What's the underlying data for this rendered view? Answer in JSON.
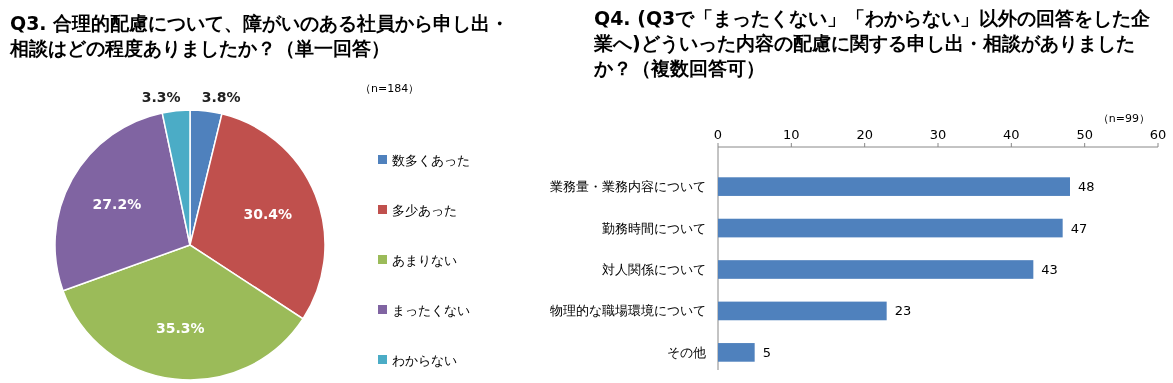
{
  "chart_data": [
    {
      "type": "pie",
      "title": "Q3. 合理的配慮について、障がいのある社員から申し出・相談はどの程度ありましたか？（単一回答）",
      "categories": [
        "数多くあった",
        "多少あった",
        "あまりない",
        "まったくない",
        "わからない"
      ],
      "values": [
        3.8,
        30.4,
        35.3,
        27.2,
        3.3
      ],
      "value_labels": [
        "3.8%",
        "30.4%",
        "35.3%",
        "27.2%",
        "3.3%"
      ],
      "colors": [
        "#4f81bd",
        "#c0504d",
        "#9bbb59",
        "#8064a2",
        "#4bacc6"
      ],
      "legend": "right",
      "annotations": [
        "（n=184）"
      ]
    },
    {
      "type": "bar",
      "orientation": "horizontal",
      "title": "Q4. (Q3で「まったくない」「わからない」以外の回答をした企業へ)どういった内容の配慮に関する申し出・相談がありましたか？（複数回答可）",
      "categories": [
        "業務量・業務内容について",
        "勤務時間について",
        "対人関係について",
        "物理的な職場環境について",
        "その他"
      ],
      "values": [
        48,
        47,
        43,
        23,
        5
      ],
      "color": "#4f81bd",
      "xlim": [
        0,
        60
      ],
      "xticks": [
        0,
        10,
        20,
        30,
        40,
        50,
        60
      ],
      "data_labels": true,
      "annotations": [
        "（n=99）"
      ]
    }
  ]
}
